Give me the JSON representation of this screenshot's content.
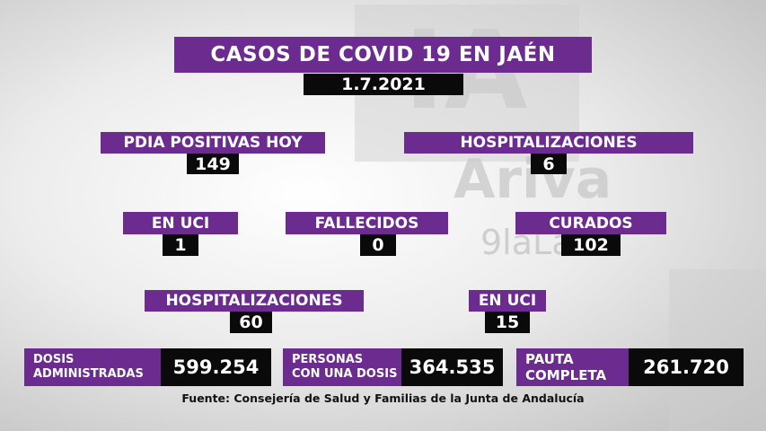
{
  "title": "CASOS DE COVID 19 EN JAÉN",
  "date": "1.7.2021",
  "stats": {
    "pdia_label": "PDIA POSITIVAS HOY",
    "pdia_value": "149",
    "hosp_label": "HOSPITALIZACIONES",
    "hosp_value": "6",
    "uci_label": "EN UCI",
    "uci_value": "1",
    "fallecidos_label": "FALLECIDOS",
    "fallecidos_value": "0",
    "curados_label": "CURADOS",
    "curados_value": "102",
    "hosp_total_label": "HOSPITALIZACIONES",
    "hosp_total_value": "60",
    "uci_total_label": "EN UCI",
    "uci_total_value": "15"
  },
  "vaccines": {
    "dosis_label_1": "DOSIS",
    "dosis_label_2": "ADMINISTRADAS",
    "dosis_value": "599.254",
    "personas_label_1": "PERSONAS",
    "personas_label_2": "CON UNA DOSIS",
    "personas_value": "364.535",
    "pauta_label_1": "PAUTA",
    "pauta_label_2": "COMPLETA",
    "pauta_value": "261.720"
  },
  "source": "Fuente: Consejería de Salud y Familias de la Junta de Andalucía",
  "watermark": {
    "logo_text": "IA",
    "brand_text": "Ariva",
    "site_text": "9laLa"
  },
  "colors": {
    "purple": "#6b2b8f",
    "black": "#0a0a0a"
  }
}
